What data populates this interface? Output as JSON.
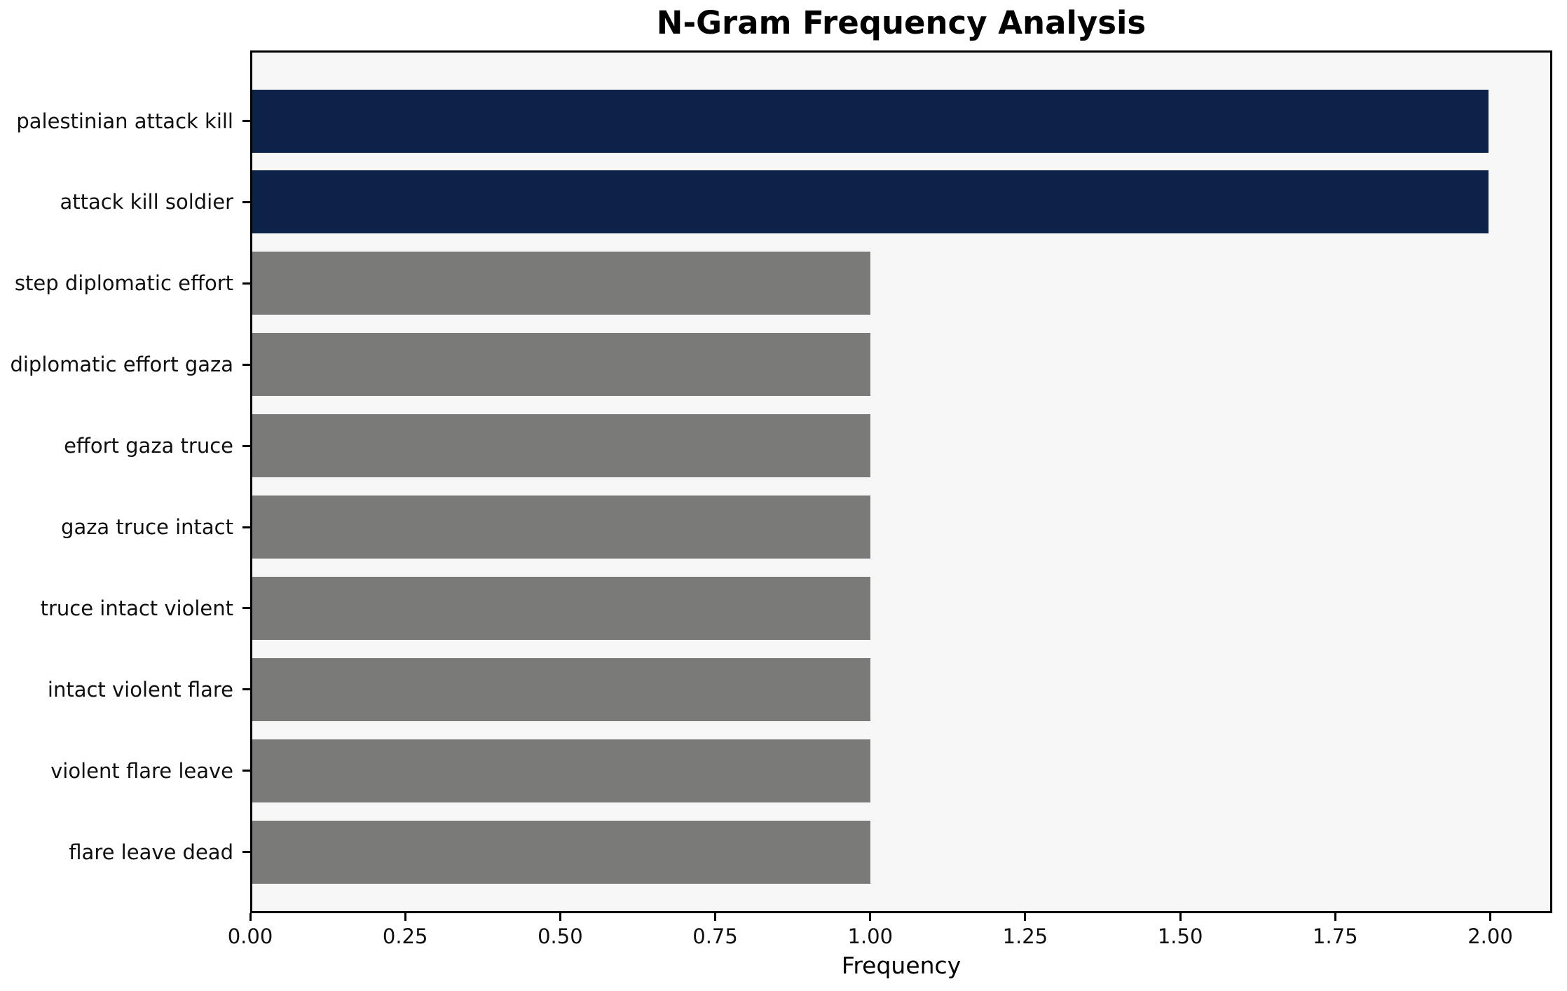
{
  "chart_data": {
    "type": "bar",
    "orientation": "horizontal",
    "title": "N-Gram Frequency Analysis",
    "xlabel": "Frequency",
    "ylabel": "",
    "categories": [
      "palestinian attack kill",
      "attack kill soldier",
      "step diplomatic effort",
      "diplomatic effort gaza",
      "effort gaza truce",
      "gaza truce intact",
      "truce intact violent",
      "intact violent flare",
      "violent flare leave",
      "flare leave dead"
    ],
    "values": [
      2,
      2,
      1,
      1,
      1,
      1,
      1,
      1,
      1,
      1
    ],
    "bar_colors": [
      "#0c2248",
      "#0c2248",
      "#7a7a78",
      "#7a7a78",
      "#7a7a78",
      "#7a7a78",
      "#7a7a78",
      "#7a7a78",
      "#7a7a78",
      "#7a7a78"
    ],
    "x_ticks": [
      {
        "value": 0.0,
        "label": "0.00"
      },
      {
        "value": 0.25,
        "label": "0.25"
      },
      {
        "value": 0.5,
        "label": "0.50"
      },
      {
        "value": 0.75,
        "label": "0.75"
      },
      {
        "value": 1.0,
        "label": "1.00"
      },
      {
        "value": 1.25,
        "label": "1.25"
      },
      {
        "value": 1.5,
        "label": "1.50"
      },
      {
        "value": 1.75,
        "label": "1.75"
      },
      {
        "value": 2.0,
        "label": "2.00"
      }
    ],
    "xlim": [
      0,
      2.1
    ],
    "grid": false,
    "legend": null,
    "colors": {
      "highlight_bar": "#0c2248",
      "default_bar": "#7a7a78",
      "plot_background": "#f7f7f7",
      "figure_background": "#ffffff",
      "spine": "#000000",
      "text": "#000000"
    }
  }
}
